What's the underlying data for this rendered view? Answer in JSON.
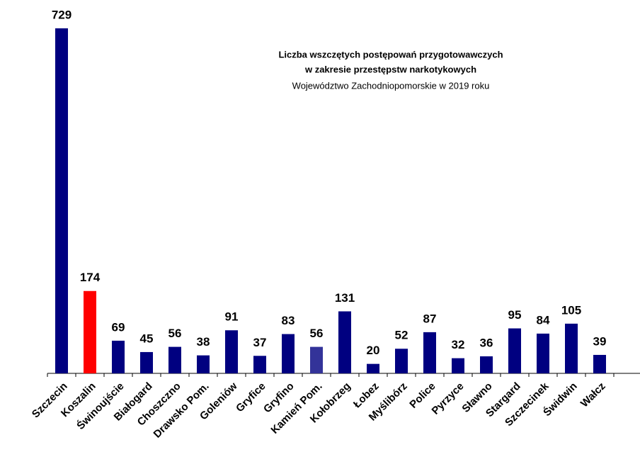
{
  "chart_data": {
    "type": "bar",
    "title": [
      "Liczba wszczętych postępowań przygotowawczych",
      "w zakresie przestępstw narkotykowych",
      "Województwo Zachodniopomorskie w 2019 roku"
    ],
    "categories": [
      "Szczecin",
      "Koszalin",
      "Świnoujście",
      "Białogard",
      "Choszczno",
      "Drawsko Pom.",
      "Goleniów",
      "Gryfice",
      "Gryfino",
      "Kamień Pom.",
      "Kołobrzeg",
      "Łobez",
      "Myślibórz",
      "Police",
      "Pyrzyce",
      "Sławno",
      "Stargard",
      "Szczecinek",
      "Świdwin",
      "Wałcz"
    ],
    "values": [
      729,
      174,
      69,
      45,
      56,
      38,
      91,
      37,
      83,
      56,
      131,
      20,
      52,
      87,
      32,
      36,
      95,
      84,
      105,
      39
    ],
    "colors": [
      "#000080",
      "#ff0000",
      "#000080",
      "#000080",
      "#000080",
      "#000080",
      "#000080",
      "#000080",
      "#000080",
      "#333399",
      "#000080",
      "#000080",
      "#000080",
      "#000080",
      "#000080",
      "#000080",
      "#000080",
      "#000080",
      "#000080",
      "#000080"
    ]
  }
}
